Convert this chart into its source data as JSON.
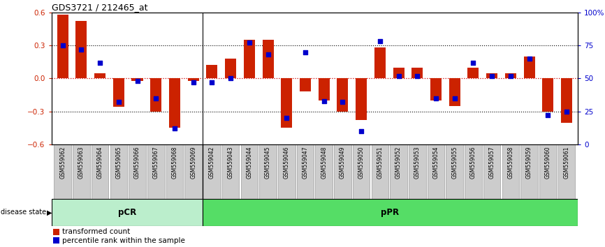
{
  "title": "GDS3721 / 212465_at",
  "samples": [
    "GSM559062",
    "GSM559063",
    "GSM559064",
    "GSM559065",
    "GSM559066",
    "GSM559067",
    "GSM559068",
    "GSM559069",
    "GSM559042",
    "GSM559043",
    "GSM559044",
    "GSM559045",
    "GSM559046",
    "GSM559047",
    "GSM559048",
    "GSM559049",
    "GSM559050",
    "GSM559051",
    "GSM559052",
    "GSM559053",
    "GSM559054",
    "GSM559055",
    "GSM559056",
    "GSM559057",
    "GSM559058",
    "GSM559059",
    "GSM559060",
    "GSM559061"
  ],
  "transformed_count": [
    0.58,
    0.52,
    0.05,
    -0.26,
    -0.02,
    -0.3,
    -0.45,
    -0.02,
    0.12,
    0.18,
    0.35,
    0.35,
    -0.45,
    -0.12,
    -0.2,
    -0.3,
    -0.38,
    0.28,
    0.1,
    0.1,
    -0.2,
    -0.25,
    0.1,
    0.05,
    0.05,
    0.2,
    -0.3,
    -0.4
  ],
  "percentile_rank": [
    75,
    72,
    62,
    32,
    48,
    35,
    12,
    47,
    47,
    50,
    77,
    68,
    20,
    70,
    33,
    32,
    10,
    78,
    52,
    52,
    35,
    35,
    62,
    52,
    52,
    65,
    22,
    25
  ],
  "pcr_count": 8,
  "bar_color": "#CC2200",
  "dot_color": "#0000CC",
  "zero_line_color": "#CC0000",
  "ylim": [
    -0.6,
    0.6
  ],
  "yticks_left": [
    -0.6,
    -0.3,
    0.0,
    0.3,
    0.6
  ],
  "yticks_right": [
    0,
    25,
    50,
    75,
    100
  ],
  "right_yticklabels": [
    "0",
    "25",
    "50",
    "75",
    "100%"
  ],
  "pcr_color": "#BBEECC",
  "ppr_color": "#55DD66",
  "label_box_color": "#CCCCCC",
  "label_box_edge": "#888888",
  "dotted_vals": [
    -0.3,
    0.3
  ]
}
